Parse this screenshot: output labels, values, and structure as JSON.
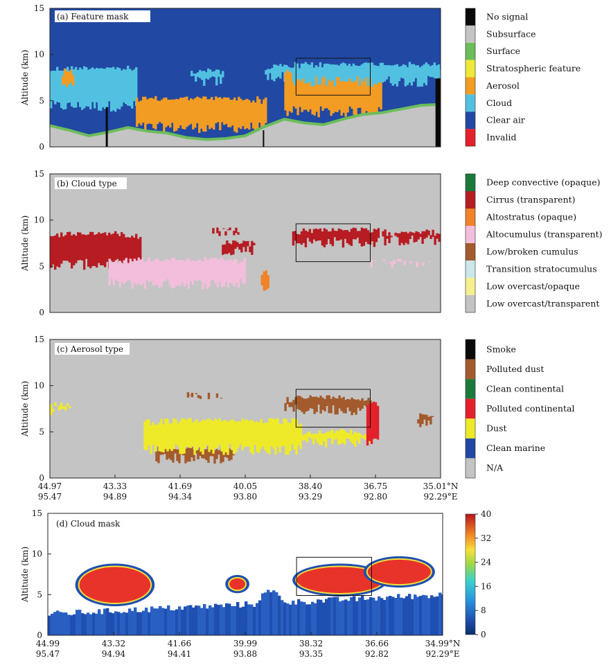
{
  "chart_data": [
    {
      "type": "heatmap",
      "panel": "a",
      "title": "(a) Feature mask",
      "ylabel": "Altitude (km)",
      "ylim": [
        0,
        15
      ],
      "yticks": [
        "0",
        "5",
        "10",
        "15"
      ],
      "background_class": "Clear air",
      "legend": [
        {
          "label": "No signal",
          "color": "#0a0a0a"
        },
        {
          "label": "Subsurface",
          "color": "#c4c4c4"
        },
        {
          "label": "Surface",
          "color": "#6bbd5a"
        },
        {
          "label": "Stratospheric feature",
          "color": "#efe93a"
        },
        {
          "label": "Aerosol",
          "color": "#f29c24"
        },
        {
          "label": "Cloud",
          "color": "#52c1e1"
        },
        {
          "label": "Clear air",
          "color": "#2148a3"
        },
        {
          "label": "Invalid",
          "color": "#e4202a"
        }
      ],
      "surface_altitude_km": [
        2.3,
        1.8,
        1.2,
        1.6,
        2.1,
        1.7,
        1.5,
        1.0,
        0.8,
        0.9,
        1.2,
        2.2,
        3.0,
        2.6,
        2.4,
        3.0,
        3.5,
        3.7,
        4.1,
        4.5,
        4.6
      ],
      "features": [
        {
          "class": "Cloud",
          "range": [
            0.0,
            0.22
          ],
          "alt_km": [
            3.8,
            8.8
          ]
        },
        {
          "class": "Aerosol",
          "range": [
            0.03,
            0.06
          ],
          "alt_km": [
            6.0,
            8.5
          ]
        },
        {
          "class": "Aerosol",
          "range": [
            0.22,
            0.55
          ],
          "alt_km": [
            1.5,
            5.5
          ]
        },
        {
          "class": "Cloud",
          "range": [
            0.36,
            0.44
          ],
          "alt_km": [
            6.5,
            8.5
          ]
        },
        {
          "class": "Cloud",
          "range": [
            0.55,
            0.62
          ],
          "alt_km": [
            7.0,
            9.0
          ]
        },
        {
          "class": "Aerosol",
          "range": [
            0.6,
            0.85
          ],
          "alt_km": [
            3.2,
            8.6
          ]
        },
        {
          "class": "Cloud",
          "range": [
            0.62,
            1.0
          ],
          "alt_km": [
            6.5,
            9.2
          ]
        }
      ],
      "highlight_box": {
        "range": [
          0.63,
          0.82
        ],
        "alt_km": [
          5.6,
          9.6
        ]
      }
    },
    {
      "type": "heatmap",
      "panel": "b",
      "title": "(b) Cloud type",
      "ylabel": "Altitude (km)",
      "ylim": [
        0,
        15
      ],
      "yticks": [
        "0",
        "5",
        "10",
        "15"
      ],
      "background_class": "Low overcast/transparent",
      "legend": [
        {
          "label": "Deep convective (opaque)",
          "color": "#1b7a3b"
        },
        {
          "label": "Cirrus (transparent)",
          "color": "#b71c22"
        },
        {
          "label": "Altostratus (opaque)",
          "color": "#f08228"
        },
        {
          "label": "Altocumulus (transparent)",
          "color": "#f3bedb"
        },
        {
          "label": "Low/broken cumulus",
          "color": "#a35a2c"
        },
        {
          "label": "Transition stratocumulus",
          "color": "#cce7ea"
        },
        {
          "label": "Low overcast/opaque",
          "color": "#f5f08d"
        },
        {
          "label": "Low overcast/transparent",
          "color": "#c4c4c4"
        }
      ],
      "features": [
        {
          "class": "Cirrus (transparent)",
          "range": [
            0.0,
            0.23
          ],
          "alt_km": [
            4.6,
            8.8
          ]
        },
        {
          "class": "Altocumulus (transparent)",
          "range": [
            0.15,
            0.5
          ],
          "alt_km": [
            2.5,
            6.0
          ]
        },
        {
          "class": "Cirrus (transparent)",
          "range": [
            0.41,
            0.5
          ],
          "alt_km": [
            8.2,
            9.2
          ]
        },
        {
          "class": "Cirrus (transparent)",
          "range": [
            0.44,
            0.52
          ],
          "alt_km": [
            6.2,
            7.8
          ]
        },
        {
          "class": "Cirrus (transparent)",
          "range": [
            0.62,
            0.84
          ],
          "alt_km": [
            7.0,
            9.2
          ]
        },
        {
          "class": "Cirrus (transparent)",
          "range": [
            0.85,
            1.0
          ],
          "alt_km": [
            7.2,
            9.0
          ]
        },
        {
          "class": "Altocumulus (transparent)",
          "range": [
            0.82,
            0.98
          ],
          "alt_km": [
            4.8,
            5.8
          ]
        },
        {
          "class": "Altostratus (opaque)",
          "range": [
            0.54,
            0.56
          ],
          "alt_km": [
            2.0,
            4.6
          ]
        }
      ],
      "highlight_box": {
        "range": [
          0.63,
          0.82
        ],
        "alt_km": [
          5.5,
          9.6
        ]
      }
    },
    {
      "type": "heatmap",
      "panel": "c",
      "title": "(c) Aerosol type",
      "ylabel": "Altitude (km)",
      "ylim": [
        0,
        15
      ],
      "yticks": [
        "0",
        "5",
        "10",
        "15"
      ],
      "background_class": "N/A",
      "legend": [
        {
          "label": "Smoke",
          "color": "#0a0a0a"
        },
        {
          "label": "Polluted dust",
          "color": "#a35a2c"
        },
        {
          "label": "Clean continental",
          "color": "#1b7a3b"
        },
        {
          "label": "Polluted continental",
          "color": "#e4202a"
        },
        {
          "label": "Dust",
          "color": "#eeea2a"
        },
        {
          "label": "Clean marine",
          "color": "#2148a3"
        },
        {
          "label": "N/A",
          "color": "#c4c4c4"
        }
      ],
      "features": [
        {
          "class": "Dust",
          "range": [
            0.0,
            0.05
          ],
          "alt_km": [
            6.8,
            8.2
          ]
        },
        {
          "class": "Polluted dust",
          "range": [
            0.27,
            0.47
          ],
          "alt_km": [
            1.5,
            3.5
          ]
        },
        {
          "class": "Dust",
          "range": [
            0.24,
            0.64
          ],
          "alt_km": [
            2.5,
            6.5
          ]
        },
        {
          "class": "Polluted dust",
          "range": [
            0.34,
            0.44
          ],
          "alt_km": [
            8.5,
            9.3
          ]
        },
        {
          "class": "Polluted dust",
          "range": [
            0.6,
            0.82
          ],
          "alt_km": [
            6.8,
            9.0
          ]
        },
        {
          "class": "Dust",
          "range": [
            0.64,
            0.82
          ],
          "alt_km": [
            3.3,
            5.3
          ]
        },
        {
          "class": "Polluted continental",
          "range": [
            0.81,
            0.84
          ],
          "alt_km": [
            3.2,
            8.4
          ]
        },
        {
          "class": "Polluted dust",
          "range": [
            0.94,
            0.98
          ],
          "alt_km": [
            5.5,
            7.0
          ]
        }
      ],
      "highlight_box": {
        "range": [
          0.63,
          0.82
        ],
        "alt_km": [
          5.5,
          9.6
        ]
      },
      "x_axis": {
        "lat": [
          "44.97",
          "43.33",
          "41.69",
          "40.05",
          "38.40",
          "36.75",
          "35.01°N"
        ],
        "lon": [
          "95.47",
          "94.89",
          "94.34",
          "93.80",
          "93.29",
          "92.80",
          "92.29°E"
        ]
      }
    },
    {
      "type": "heatmap",
      "panel": "d",
      "title": "(d) Cloud mask",
      "ylabel": "Altitude (km)",
      "ylim": [
        0,
        15
      ],
      "yticks": [
        "0",
        "5",
        "10",
        "15"
      ],
      "colorbar": {
        "min": 0,
        "max": 40,
        "ticks": [
          "0",
          "8",
          "16",
          "24",
          "32",
          "40"
        ]
      },
      "blobs": [
        {
          "center": [
            0.17,
            6.2
          ],
          "half_width": 0.09,
          "half_height_km": 2.2,
          "peak_value": 36
        },
        {
          "center": [
            0.48,
            6.3
          ],
          "half_width": 0.02,
          "half_height_km": 0.7,
          "peak_value": 34
        },
        {
          "center": [
            0.74,
            6.8
          ],
          "half_width": 0.11,
          "half_height_km": 1.6,
          "peak_value": 36
        },
        {
          "center": [
            0.89,
            7.8
          ],
          "half_width": 0.08,
          "half_height_km": 1.5,
          "peak_value": 36
        }
      ],
      "low_layer_km": [
        2.2,
        3.0
      ],
      "highlight_box": {
        "range": [
          0.63,
          0.82
        ],
        "alt_km": [
          4.9,
          9.6
        ]
      },
      "x_axis": {
        "lat": [
          "44.99",
          "43.32",
          "41.66",
          "39.99",
          "38.32",
          "36.66",
          "34.99°N"
        ],
        "lon": [
          "95.47",
          "94.94",
          "94.41",
          "93.88",
          "93.35",
          "92.82",
          "92.29°E"
        ]
      }
    }
  ]
}
